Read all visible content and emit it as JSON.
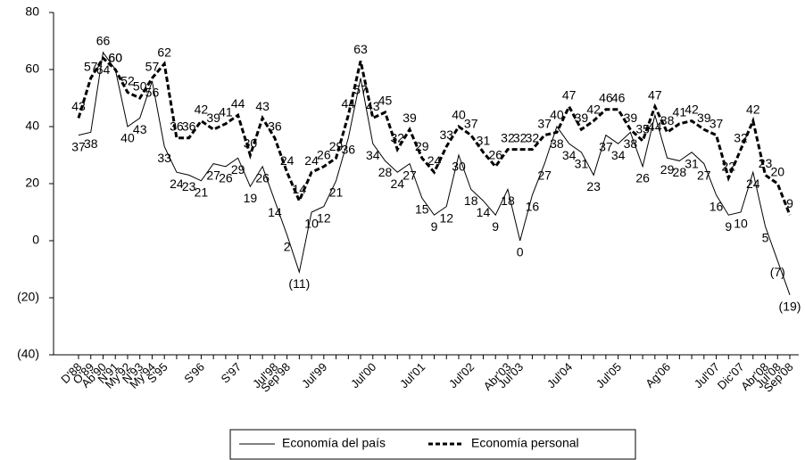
{
  "chart_data": {
    "type": "line",
    "categories": [
      "D'88",
      "O'89",
      "Ab'90",
      "N'91",
      "My'92",
      "N'93",
      "My'94",
      "S'95",
      null,
      null,
      "S'96",
      null,
      null,
      "S'97",
      null,
      null,
      "Jul'98",
      "Sep'98",
      null,
      null,
      "Jul'99",
      null,
      null,
      null,
      "Jul'00",
      null,
      null,
      null,
      "Jul'01",
      null,
      null,
      null,
      "Jul'02",
      null,
      null,
      "Abr'03",
      "Jul'03",
      null,
      null,
      null,
      "Jul'04",
      null,
      null,
      null,
      "Jul'05",
      null,
      null,
      null,
      "Ag'06",
      null,
      null,
      null,
      "Jul'07",
      null,
      "Dic'07",
      null,
      "Abr'08",
      "Jul'08",
      "Sep'08"
    ],
    "series": [
      {
        "name": "Economía del país",
        "color": "#000000",
        "dash": false,
        "values": [
          37,
          38,
          66,
          60,
          40,
          43,
          56,
          33,
          24,
          23,
          21,
          27,
          26,
          29,
          19,
          26,
          14,
          2,
          -11,
          10,
          12,
          21,
          36,
          57,
          34,
          28,
          24,
          27,
          15,
          9,
          12,
          30,
          18,
          14,
          9,
          18,
          0,
          16,
          27,
          40,
          34,
          31,
          23,
          37,
          34,
          38,
          26,
          44,
          29,
          28,
          31,
          27,
          16,
          9,
          10,
          24,
          5,
          -7,
          -19
        ],
        "value_labels": [
          "37",
          "38",
          "66",
          "60",
          "40",
          "43",
          "56",
          "33",
          "24",
          "23",
          "21",
          "27",
          "26",
          "29",
          "19",
          "26",
          "14",
          "2",
          "(11)",
          "10",
          "12",
          "21",
          "36",
          "57",
          "34",
          "28",
          "24",
          "27",
          "15",
          "9",
          "12",
          "30",
          "18",
          "14",
          "9",
          "18",
          "0",
          "16",
          "27",
          "40",
          "34",
          "31",
          "23",
          "37",
          "34",
          "38",
          "26",
          "44",
          "29",
          "28",
          "31",
          "27",
          "16",
          "9",
          "10",
          "24",
          "5",
          "(7)",
          "(19)"
        ]
      },
      {
        "name": "Economía personal",
        "color": "#000000",
        "dash": true,
        "values": [
          43,
          57,
          64,
          60,
          52,
          50,
          57,
          62,
          36,
          36,
          42,
          39,
          41,
          44,
          30,
          43,
          36,
          24,
          14,
          24,
          26,
          29,
          44,
          63,
          43,
          45,
          32,
          39,
          29,
          24,
          33,
          40,
          37,
          31,
          26,
          32,
          32,
          32,
          37,
          38,
          47,
          39,
          42,
          46,
          46,
          39,
          35,
          47,
          38,
          41,
          42,
          39,
          37,
          22,
          32,
          42,
          23,
          20,
          9
        ]
      }
    ],
    "ylim": [
      -40,
      80
    ],
    "yticks": [
      {
        "value": -40,
        "label": "(40)"
      },
      {
        "value": -20,
        "label": "(20)"
      },
      0,
      20,
      40,
      60,
      80
    ]
  }
}
